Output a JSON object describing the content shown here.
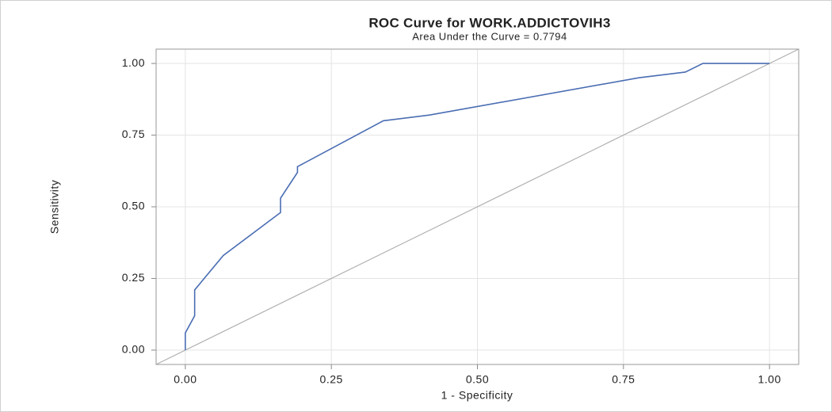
{
  "chart_data": {
    "type": "line",
    "title": "ROC Curve for WORK.ADDICTOVIH3",
    "subtitle": "Area Under the Curve = 0.7794",
    "x_label": "1 - Specificity",
    "y_label": "Sensitivity",
    "x": [
      0,
      0,
      0.016,
      0.016,
      0.065,
      0.163,
      0.163,
      0.192,
      0.192,
      0.339,
      0.418,
      0.776,
      0.856,
      0.886,
      1
    ],
    "series": [
      {
        "name": "ROC",
        "color": "#4a6db3",
        "values": [
          0,
          0.06,
          0.12,
          0.21,
          0.33,
          0.48,
          0.53,
          0.62,
          0.64,
          0.8,
          0.82,
          0.95,
          0.97,
          1,
          1
        ]
      }
    ],
    "xlim": [
      -0.05,
      1.05
    ],
    "ylim": [
      -0.05,
      1.05
    ],
    "xticks": [
      {
        "value": 0,
        "label": "0.00"
      },
      {
        "value": 0.25,
        "label": "0.25"
      },
      {
        "value": 0.5,
        "label": "0.50"
      },
      {
        "value": 0.75,
        "label": "0.75"
      },
      {
        "value": 1,
        "label": "1.00"
      }
    ],
    "yticks": [
      {
        "value": 0,
        "label": "0.00"
      },
      {
        "value": 0.25,
        "label": "0.25"
      },
      {
        "value": 0.5,
        "label": "0.50"
      },
      {
        "value": 0.75,
        "label": "0.75"
      },
      {
        "value": 1,
        "label": "1.00"
      }
    ],
    "grid": true
  }
}
